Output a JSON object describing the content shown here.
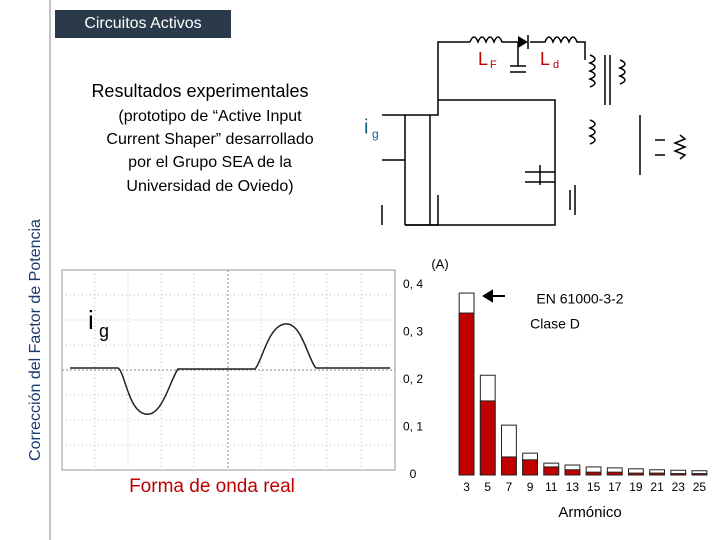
{
  "header": {
    "title": "Circuitos Activos",
    "side_title": "Corrección del Factor de Potencia"
  },
  "intro": {
    "heading": "Resultados experimentales",
    "lines": [
      "(prototipo de “Active Input",
      "Current Shaper” desarrollado",
      "por el Grupo SEA de la",
      "Universidad de Oviedo)"
    ]
  },
  "circuit": {
    "lf": "L",
    "lf_sub": "F",
    "ld": "L",
    "ld_sub": "d",
    "ig": "i",
    "ig_sub": "g"
  },
  "scope": {
    "signal": "i",
    "signal_sub": "g",
    "caption": "Forma de onda real"
  },
  "chart_data": {
    "type": "bar",
    "unit_label": "(A)",
    "x_label": "Armónico",
    "categories": [
      "3",
      "5",
      "7",
      "9",
      "11",
      "13",
      "15",
      "17",
      "19",
      "21",
      "23",
      "25"
    ],
    "series": [
      {
        "name": "EN 61000-3-2",
        "color": "#ffffff",
        "values": [
          0.383,
          0.21,
          0.105,
          0.046,
          0.025,
          0.021,
          0.017,
          0.015,
          0.013,
          0.011,
          0.01,
          0.009
        ]
      },
      {
        "color": "#c00000",
        "values": [
          0.341,
          0.156,
          0.038,
          0.032,
          0.017,
          0.011,
          0.006,
          0.006,
          0.004,
          0.004,
          0.003,
          0.003
        ]
      }
    ],
    "legend_note": "Clase D",
    "ylim": [
      0,
      0.4
    ],
    "yticks": [
      0,
      {
        "value": 0.1,
        "label": "0, 1"
      },
      {
        "value": 0.2,
        "label": "0, 2"
      },
      {
        "value": 0.3,
        "label": "0, 3"
      },
      {
        "value": 0.4,
        "label": "0, 4"
      }
    ]
  }
}
